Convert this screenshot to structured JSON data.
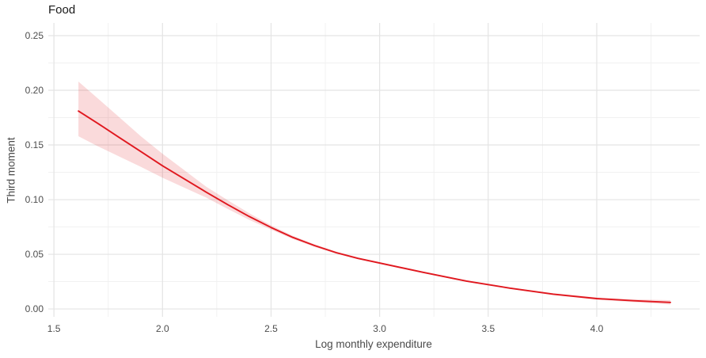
{
  "chart_data": {
    "type": "line",
    "title": "Food",
    "xlabel": "Log monthly expenditure",
    "ylabel": "Third moment",
    "xlim": [
      1.474,
      4.474
    ],
    "ylim": [
      -0.0072,
      0.2616
    ],
    "grid": true,
    "legend": false,
    "x_tick_values": [
      1.5,
      2.0,
      2.5,
      3.0,
      3.5,
      4.0
    ],
    "x_tick_labels": [
      "1.5",
      "2.0",
      "2.5",
      "3.0",
      "3.5",
      "4.0"
    ],
    "x_minor_ticks": [
      1.75,
      2.25,
      2.75,
      3.25,
      3.75,
      4.25
    ],
    "y_tick_values": [
      0.0,
      0.05,
      0.1,
      0.15,
      0.2,
      0.25
    ],
    "y_tick_labels": [
      "0.00",
      "0.05",
      "0.10",
      "0.15",
      "0.20",
      "0.25"
    ],
    "y_minor_ticks": [
      0.025,
      0.075,
      0.125,
      0.175,
      0.225
    ],
    "series": [
      {
        "name": "smoothed-fit",
        "x": [
          1.613,
          1.7,
          1.8,
          1.9,
          2.0,
          2.1,
          2.2,
          2.3,
          2.4,
          2.5,
          2.6,
          2.7,
          2.8,
          2.9,
          3.0,
          3.2,
          3.4,
          3.6,
          3.8,
          4.0,
          4.17,
          4.339
        ],
        "y": [
          0.181,
          0.17,
          0.157,
          0.144,
          0.131,
          0.119,
          0.107,
          0.0955,
          0.0845,
          0.0745,
          0.0655,
          0.058,
          0.0515,
          0.0463,
          0.042,
          0.0335,
          0.0255,
          0.019,
          0.0135,
          0.0095,
          0.0075,
          0.006
        ]
      }
    ],
    "ribbon": {
      "name": "confidence-band",
      "upper": [
        0.208,
        0.193,
        0.1755,
        0.158,
        0.142,
        0.127,
        0.112,
        0.0995,
        0.0875,
        0.0765,
        0.067,
        0.0592,
        0.0525,
        0.0471,
        0.0428,
        0.0342,
        0.0262,
        0.0197,
        0.0143,
        0.0105,
        0.0088,
        0.008
      ],
      "lower": [
        0.158,
        0.149,
        0.1395,
        0.13,
        0.12,
        0.111,
        0.102,
        0.0915,
        0.0815,
        0.0725,
        0.064,
        0.0568,
        0.0505,
        0.0455,
        0.0412,
        0.0328,
        0.0248,
        0.0183,
        0.0127,
        0.0085,
        0.0062,
        0.004
      ]
    },
    "colors": {
      "line": "#e0181f",
      "ribbon": "#e0181f",
      "ribbon_opacity": 0.16,
      "grid_major": "#e4e4e4",
      "grid_minor": "#f1f1f1",
      "tick_text": "#4d4d4d",
      "axis_title_text": "#4a4a4a",
      "title_text": "#1a1a1a"
    }
  }
}
